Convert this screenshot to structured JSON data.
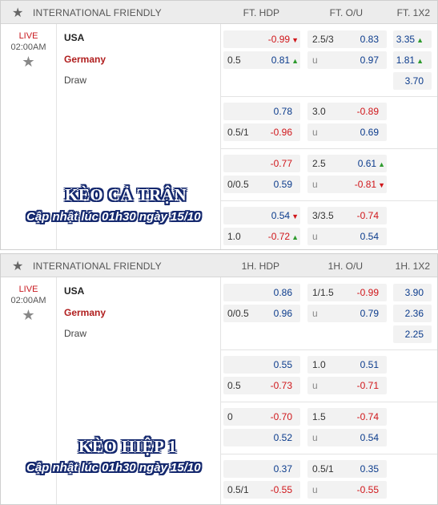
{
  "p1": {
    "league": "INTERNATIONAL FRIENDLY",
    "col_hdp": "FT. HDP",
    "col_ou": "FT. O/U",
    "col_1x2": "FT. 1X2",
    "status": "LIVE",
    "time": "02:00AM",
    "home": "USA",
    "away": "Germany",
    "draw": "Draw",
    "r1": {
      "hdp_line_a": "",
      "hdp_a": "-0.99",
      "hdp_line_b": "0.5",
      "hdp_b": "0.81",
      "ou_line_a": "2.5/3",
      "ou_a": "0.83",
      "ou_line_b": "u",
      "ou_b": "0.97",
      "x1": "3.35",
      "x2": "1.81",
      "xd": "3.70"
    },
    "r2": {
      "hdp_line_a": "",
      "hdp_a": "0.78",
      "hdp_line_b": "0.5/1",
      "hdp_b": "-0.96",
      "ou_line_a": "3.0",
      "ou_a": "-0.89",
      "ou_line_b": "u",
      "ou_b": "0.69"
    },
    "r3": {
      "hdp_line_a": "",
      "hdp_a": "-0.77",
      "hdp_line_b": "0/0.5",
      "hdp_b": "0.59",
      "ou_line_a": "2.5",
      "ou_a": "0.61",
      "ou_line_b": "u",
      "ou_b": "-0.81"
    },
    "r4": {
      "hdp_line_a": "",
      "hdp_a": "0.54",
      "hdp_line_b": "1.0",
      "hdp_b": "-0.72",
      "ou_line_a": "3/3.5",
      "ou_a": "-0.74",
      "ou_line_b": "u",
      "ou_b": "0.54"
    },
    "wm_title": "KÈO CẢ TRẬN",
    "wm_sub": "Cập nhật lúc 01h30 ngày 15/10"
  },
  "p2": {
    "league": "INTERNATIONAL FRIENDLY",
    "col_hdp": "1H. HDP",
    "col_ou": "1H. O/U",
    "col_1x2": "1H. 1X2",
    "status": "LIVE",
    "time": "02:00AM",
    "home": "USA",
    "away": "Germany",
    "draw": "Draw",
    "r1": {
      "hdp_line_a": "",
      "hdp_a": "0.86",
      "hdp_line_b": "0/0.5",
      "hdp_b": "0.96",
      "ou_line_a": "1/1.5",
      "ou_a": "-0.99",
      "ou_line_b": "u",
      "ou_b": "0.79",
      "x1": "3.90",
      "x2": "2.36",
      "xd": "2.25"
    },
    "r2": {
      "hdp_line_a": "",
      "hdp_a": "0.55",
      "hdp_line_b": "0.5",
      "hdp_b": "-0.73",
      "ou_line_a": "1.0",
      "ou_a": "0.51",
      "ou_line_b": "u",
      "ou_b": "-0.71"
    },
    "r3": {
      "hdp_line_a": "0",
      "hdp_a": "-0.70",
      "hdp_line_b": "",
      "hdp_b": "0.52",
      "ou_line_a": "1.5",
      "ou_a": "-0.74",
      "ou_line_b": "u",
      "ou_b": "0.54"
    },
    "r4": {
      "hdp_line_a": "",
      "hdp_a": "0.37",
      "hdp_line_b": "0.5/1",
      "hdp_b": "-0.55",
      "ou_line_a": "0.5/1",
      "ou_a": "0.35",
      "ou_line_b": "u",
      "ou_b": "-0.55"
    },
    "wm_title": "KÈO HIỆP 1",
    "wm_sub": "Cập nhật lúc 01h30 ngày 15/10"
  },
  "colors": {
    "negative": "#d0161a",
    "positive": "#0b3b8c",
    "away_team": "#b01e1e",
    "live": "#c8181e",
    "arrow_up": "#2e9b2e",
    "arrow_down": "#d0161a"
  }
}
